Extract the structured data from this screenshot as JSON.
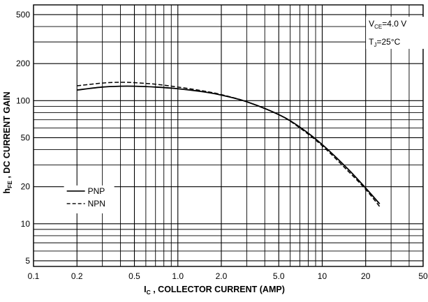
{
  "chart_data": {
    "type": "line",
    "xscale": "log",
    "yscale": "log",
    "xlim": [
      0.1,
      50
    ],
    "ylim": [
      4.5,
      600
    ],
    "grid": true,
    "legend_position": "lower-left",
    "xlabel": {
      "main": "I",
      "sub": "C",
      "rest": " , COLLECTOR CURRENT (AMP)"
    },
    "ylabel": {
      "main": "h",
      "sub": "FE",
      "rest": " , DC CURRENT GAIN"
    },
    "x_ticks": [
      {
        "v": 0.1,
        "label": "0.1"
      },
      {
        "v": 0.2,
        "label": "0.2"
      },
      {
        "v": 0.5,
        "label": "0.5"
      },
      {
        "v": 1.0,
        "label": "1.0"
      },
      {
        "v": 2.0,
        "label": "2.0"
      },
      {
        "v": 5.0,
        "label": "5.0"
      },
      {
        "v": 10,
        "label": "10"
      },
      {
        "v": 20,
        "label": "20"
      },
      {
        "v": 50,
        "label": "50"
      }
    ],
    "y_ticks": [
      {
        "v": 5,
        "label": "5"
      },
      {
        "v": 10,
        "label": "10"
      },
      {
        "v": 20,
        "label": "20"
      },
      {
        "v": 50,
        "label": "50"
      },
      {
        "v": 100,
        "label": "100"
      },
      {
        "v": 200,
        "label": "200"
      },
      {
        "v": 500,
        "label": "500"
      }
    ],
    "annotations": {
      "vce": {
        "main": "V",
        "sub": "CE",
        "rest": "=4.0 V"
      },
      "tj": {
        "main": "T",
        "sub": "J",
        "rest": "=25°C"
      }
    },
    "series": [
      {
        "name": "PNP",
        "style": "solid",
        "x": [
          0.2,
          0.3,
          0.4,
          0.5,
          0.7,
          1.0,
          1.5,
          2.0,
          3.0,
          5.0,
          7.0,
          10,
          15,
          20,
          25
        ],
        "y": [
          122,
          129,
          131,
          131,
          129,
          125,
          118,
          111,
          98,
          77,
          61,
          44,
          28,
          19.5,
          14.5
        ]
      },
      {
        "name": "NPN",
        "style": "dashed",
        "x": [
          0.2,
          0.3,
          0.4,
          0.5,
          0.7,
          1.0,
          1.5,
          2.0,
          3.0,
          5.0,
          7.0,
          10,
          15,
          20,
          25
        ],
        "y": [
          132,
          139,
          141,
          140,
          136,
          129,
          120,
          112,
          98,
          77,
          60,
          43,
          27,
          19,
          13.8
        ]
      }
    ]
  }
}
